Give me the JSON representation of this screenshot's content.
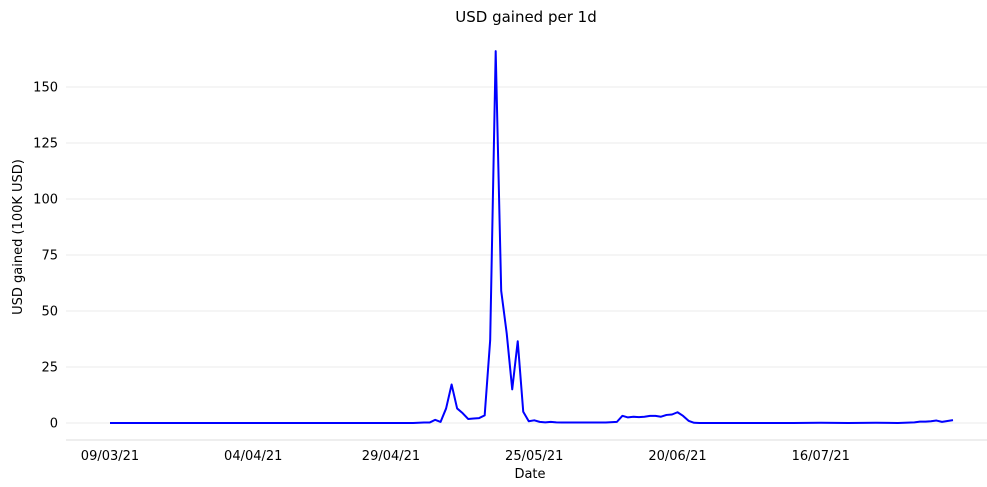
{
  "chart_data": {
    "type": "line",
    "title": "USD gained per 1d",
    "xlabel": "Date",
    "ylabel": "USD gained (100K USD)",
    "ylim": [
      -8,
      168
    ],
    "grid": true,
    "x_ticks": [
      "09/03/21",
      "04/04/21",
      "29/04/21",
      "25/05/21",
      "20/06/21",
      "16/07/21"
    ],
    "y_ticks": [
      0,
      25,
      50,
      75,
      100,
      125,
      150
    ],
    "line_color": "#0000ff",
    "series": [
      {
        "x": [
          "09/03/21",
          "13/03/21",
          "17/03/21",
          "21/03/21",
          "25/03/21",
          "29/03/21",
          "02/04/21",
          "04/04/21",
          "08/04/21",
          "12/04/21",
          "16/04/21",
          "20/04/21",
          "24/04/21",
          "29/04/21",
          "03/05/21",
          "05/05/21",
          "06/05/21",
          "07/05/21",
          "08/05/21",
          "09/05/21",
          "10/05/21",
          "11/05/21",
          "12/05/21",
          "13/05/21",
          "14/05/21",
          "15/05/21",
          "16/05/21",
          "17/05/21",
          "18/05/21",
          "19/05/21",
          "20/05/21",
          "21/05/21",
          "22/05/21",
          "23/05/21",
          "24/05/21",
          "25/05/21",
          "26/05/21",
          "27/05/21",
          "28/05/21",
          "29/05/21",
          "30/05/21",
          "01/06/21",
          "03/06/21",
          "05/06/21",
          "07/06/21",
          "09/06/21",
          "10/06/21",
          "11/06/21",
          "12/06/21",
          "13/06/21",
          "14/06/21",
          "15/06/21",
          "16/06/21",
          "17/06/21",
          "18/06/21",
          "19/06/21",
          "20/06/21",
          "21/06/21",
          "22/06/21",
          "23/06/21",
          "24/06/21",
          "25/06/21",
          "27/06/21",
          "01/07/21",
          "06/07/21",
          "11/07/21",
          "16/07/21",
          "21/07/21",
          "26/07/21",
          "30/07/21",
          "02/08/21",
          "03/08/21",
          "04/08/21",
          "05/08/21",
          "06/08/21",
          "07/08/21",
          "09/08/21"
        ],
        "y": [
          0,
          0,
          0,
          0,
          0,
          0,
          0,
          0,
          0,
          0,
          0,
          0,
          0,
          0,
          0,
          0.2,
          0.2,
          1.4,
          0.5,
          6.5,
          17.2,
          6.5,
          4.4,
          1.8,
          2,
          2.2,
          3.4,
          37,
          166,
          59,
          40,
          15,
          36.5,
          5,
          0.8,
          1.2,
          0.5,
          0.3,
          0.5,
          0.3,
          0.2,
          0.2,
          0.2,
          0.2,
          0.2,
          0.5,
          3.2,
          2.5,
          2.8,
          2.6,
          2.8,
          3.2,
          3.2,
          2.8,
          3.6,
          3.8,
          4.8,
          3.2,
          1,
          0.1,
          0,
          0,
          0,
          0,
          0,
          0,
          0.1,
          0,
          0.1,
          0,
          0.3,
          0.6,
          0.6,
          0.8,
          1.1,
          0.5,
          1.3
        ]
      }
    ]
  }
}
